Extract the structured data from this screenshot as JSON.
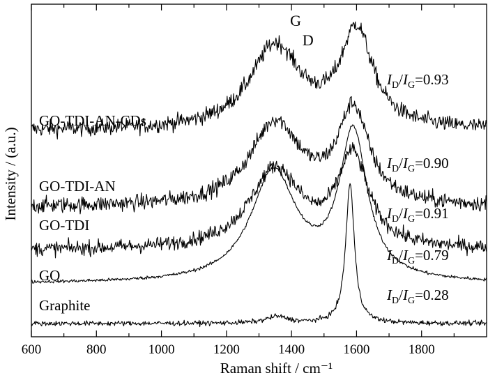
{
  "chart_data": {
    "type": "line",
    "title": "",
    "xlabel": "Raman shift / cm⁻¹",
    "ylabel": "Intensity / (a.u.)",
    "xlim": [
      600,
      2000
    ],
    "x_ticks": [
      "600",
      "800",
      "1000",
      "1200",
      "1400",
      "1600",
      "1800"
    ],
    "y_ticks": [],
    "grid": false,
    "legend": "none",
    "peak_labels": [
      {
        "text": "D",
        "x": 1350
      },
      {
        "text": "G",
        "x": 1595
      }
    ],
    "series": [
      {
        "name": "GO-TDI-AN-CDs",
        "ratio_label": "=0.93",
        "baseline": 0.62,
        "noise": 0.02,
        "peaks": [
          {
            "center": 1350,
            "height": 0.25,
            "width": 95
          },
          {
            "center": 1600,
            "height": 0.29,
            "width": 60
          }
        ]
      },
      {
        "name": "GO-TDI-AN",
        "ratio_label": "=0.90",
        "baseline": 0.39,
        "noise": 0.02,
        "peaks": [
          {
            "center": 1350,
            "height": 0.25,
            "width": 95
          },
          {
            "center": 1590,
            "height": 0.28,
            "width": 58
          }
        ]
      },
      {
        "name": "GO-TDI",
        "ratio_label": "=0.91",
        "baseline": 0.26,
        "noise": 0.018,
        "peaks": [
          {
            "center": 1350,
            "height": 0.24,
            "width": 95
          },
          {
            "center": 1588,
            "height": 0.27,
            "width": 58
          }
        ]
      },
      {
        "name": "GO",
        "ratio_label": "=0.79",
        "baseline": 0.16,
        "noise": 0.004,
        "peaks": [
          {
            "center": 1345,
            "height": 0.33,
            "width": 85
          },
          {
            "center": 1590,
            "height": 0.44,
            "width": 52
          }
        ]
      },
      {
        "name": "Graphite",
        "ratio_label": "=0.28",
        "baseline": 0.04,
        "noise": 0.006,
        "peaks": [
          {
            "center": 1355,
            "height": 0.02,
            "width": 40
          },
          {
            "center": 1580,
            "height": 0.42,
            "width": 16
          }
        ]
      }
    ]
  }
}
